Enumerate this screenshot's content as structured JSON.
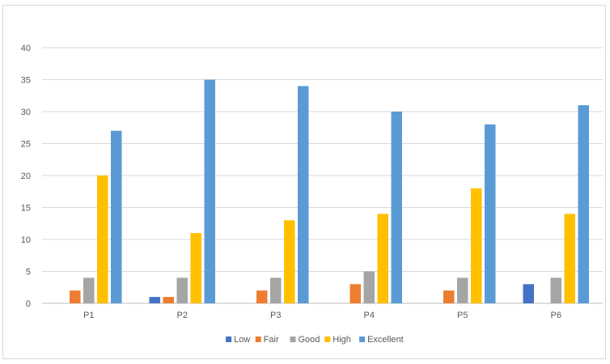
{
  "chart_data": {
    "type": "bar",
    "categories": [
      "P1",
      "P2",
      "P3",
      "P4",
      "P5",
      "P6"
    ],
    "series": [
      {
        "name": "Low",
        "color": "#4472c4",
        "values": [
          0,
          1,
          0,
          0,
          0,
          3
        ]
      },
      {
        "name": "Fair",
        "color": "#ed7d31",
        "values": [
          2,
          1,
          2,
          3,
          2,
          0
        ]
      },
      {
        "name": "Good",
        "color": "#a5a5a5",
        "values": [
          4,
          4,
          4,
          5,
          4,
          4
        ]
      },
      {
        "name": "High",
        "color": "#ffc000",
        "values": [
          20,
          11,
          13,
          14,
          18,
          14
        ]
      },
      {
        "name": "Excellent",
        "color": "#5b9bd5",
        "values": [
          27,
          35,
          34,
          30,
          28,
          31
        ]
      }
    ],
    "title": "",
    "xlabel": "",
    "ylabel": "",
    "ylim": [
      0,
      40
    ],
    "yticks": [
      0,
      5,
      10,
      15,
      20,
      25,
      30,
      35,
      40
    ],
    "grid": true,
    "legend": "bottom"
  }
}
